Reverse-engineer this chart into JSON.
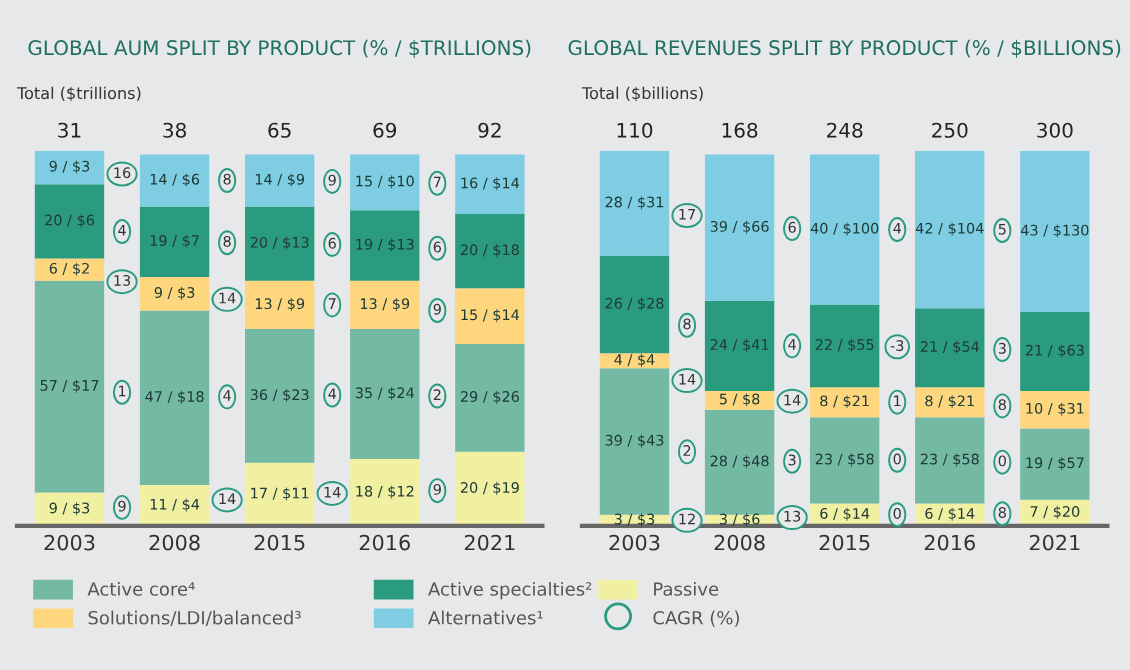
{
  "chart_data": [
    {
      "type": "bar",
      "title": "GLOBAL AUM SPLIT BY PRODUCT (% / $TRILLIONS)",
      "categories": [
        "2003",
        "2008",
        "2015",
        "2016",
        "2021"
      ],
      "stacked": true,
      "legend": "bottom",
      "grid": false,
      "tick_labels": "x",
      "series": [
        {
          "color": "#f0efa2",
          "values": [
            9,
            11,
            17,
            18,
            20
          ],
          "value_labels": [
            "9 / $3",
            "11 / $4",
            "17 / $11",
            "18 / $12",
            "20 / $19"
          ]
        },
        {
          "name": "Active core⁴",
          "color": "#74b9a3",
          "values": [
            57,
            47,
            36,
            35,
            29
          ],
          "value_labels": [
            "57 / $17",
            "47 / $18",
            "36 / $23",
            "35 / $24",
            "29 / $26"
          ]
        },
        {
          "name": "Solutions/LDI/balanced³",
          "color": "#fdd67e",
          "values": [
            6,
            9,
            13,
            13,
            15
          ],
          "value_labels": [
            "6 / $2",
            "9 / $3",
            "13 / $9",
            "13 / $9",
            "15 / $14"
          ]
        },
        {
          "name": "Active specialties²",
          "color": "#2a9b7f",
          "values": [
            20,
            19,
            20,
            19,
            20
          ],
          "value_labels": [
            "20 / $6",
            "19 / $7",
            "20 / $13",
            "19 / $13",
            "20 / $18"
          ]
        },
        {
          "name": "Alternatives¹",
          "color": "#7fcde2",
          "values": [
            9,
            14,
            14,
            15,
            16
          ],
          "value_labels": [
            "9 / $3",
            "14 / $6",
            "14 / $9",
            "15 / $10",
            "16 / $14"
          ]
        }
      ],
      "annotations": [
        "Total ($trillions)",
        "31",
        "38",
        "65",
        "69",
        "92",
        "9",
        "14",
        "14",
        "9",
        "1",
        "4",
        "4",
        "2",
        "13",
        "14",
        "7",
        "9",
        "4",
        "8",
        "6",
        "6",
        "16",
        "8",
        "9",
        "7"
      ]
    },
    {
      "type": "bar",
      "title": "GLOBAL REVENUES SPLIT BY PRODUCT (% / $BILLIONS)",
      "categories": [
        "2003",
        "2008",
        "2015",
        "2016",
        "2021"
      ],
      "stacked": true,
      "legend": "bottom",
      "grid": false,
      "tick_labels": "x",
      "series": [
        {
          "name": "Passive",
          "color": "#f0efa2",
          "values": [
            3,
            3,
            6,
            6,
            7
          ],
          "value_labels": [
            "3 / $3",
            "3 / $6",
            "6 / $14",
            "6 / $14",
            "7 / $20"
          ]
        },
        {
          "color": "#74b9a3",
          "values": [
            39,
            28,
            23,
            23,
            19
          ],
          "value_labels": [
            "39 / $43",
            "28 / $48",
            "23 / $58",
            "23 / $58",
            "19 / $57"
          ]
        },
        {
          "color": "#fdd67e",
          "values": [
            4,
            5,
            8,
            8,
            10
          ],
          "value_labels": [
            "4 / $4",
            "5 / $8",
            "8 / $21",
            "8 / $21",
            "10 / $31"
          ]
        },
        {
          "color": "#2a9b7f",
          "values": [
            26,
            24,
            22,
            21,
            21
          ],
          "value_labels": [
            "26 / $28",
            "24 / $41",
            "22 / $55",
            "21 / $54",
            "21 / $63"
          ]
        },
        {
          "color": "#7fcde2",
          "values": [
            28,
            39,
            40,
            42,
            43
          ],
          "value_labels": [
            "28 / $31",
            "39 / $66",
            "40 / $100",
            "42 / $104",
            "43 / $130"
          ]
        }
      ],
      "annotations": [
        "Total ($billions)",
        "110",
        "168",
        "248",
        "250",
        "300",
        "12",
        "13",
        "0",
        "8",
        "2",
        "3",
        "0",
        "0",
        "14",
        "14",
        "1",
        "8",
        "8",
        "4",
        "-3",
        "3",
        "17",
        "6",
        "4",
        "5",
        "CAGR (%)"
      ]
    }
  ]
}
